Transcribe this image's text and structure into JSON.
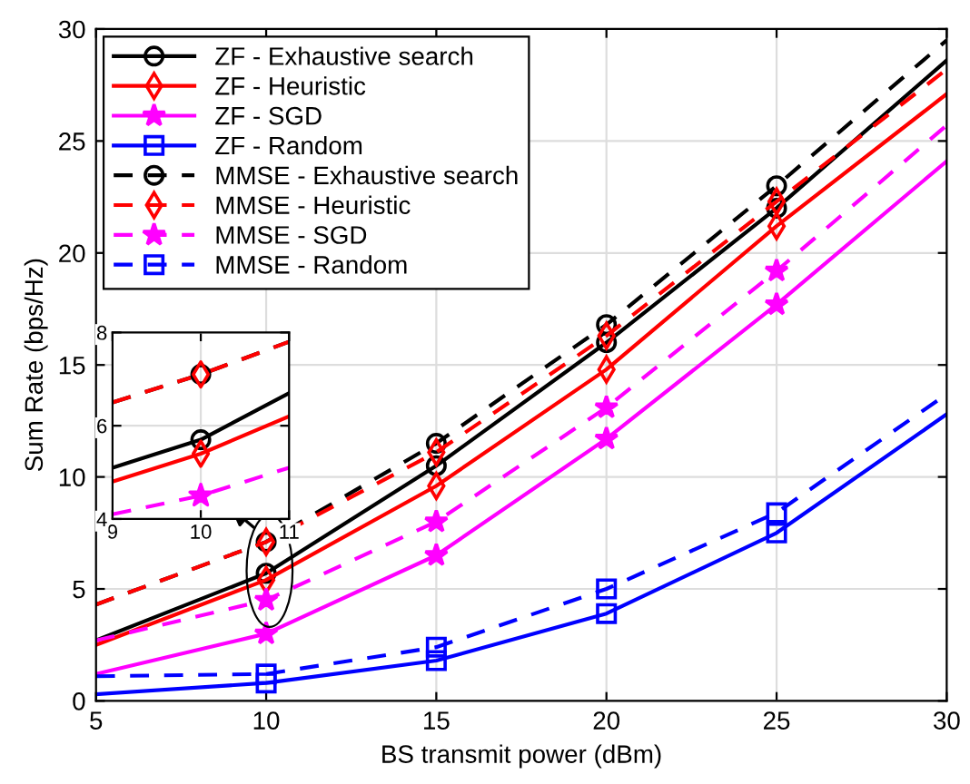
{
  "chart_data": [
    {
      "type": "line",
      "xlabel": "BS transmit power (dBm)",
      "ylabel": "Sum Rate (bps/Hz)",
      "x": [
        5,
        10,
        15,
        20,
        25,
        30
      ],
      "xlim": [
        5,
        30
      ],
      "ylim": [
        0,
        30
      ],
      "xticks": [
        5,
        10,
        15,
        20,
        25,
        30
      ],
      "yticks": [
        0,
        5,
        10,
        15,
        20,
        25,
        30
      ],
      "grid": true,
      "legend": "top left",
      "series": [
        {
          "name": "ZF - Exhaustive search",
          "color": "#000000",
          "marker": "circle",
          "line_style": "solid",
          "values": [
            2.7,
            5.7,
            10.5,
            16.0,
            22.0,
            28.6
          ]
        },
        {
          "name": "ZF - Heuristic",
          "color": "#ff0000",
          "marker": "diamond",
          "line_style": "solid",
          "values": [
            2.5,
            5.4,
            9.6,
            14.8,
            21.2,
            27.1
          ]
        },
        {
          "name": "ZF - SGD",
          "color": "#ff00ff",
          "marker": "star",
          "line_style": "solid",
          "values": [
            1.2,
            3.0,
            6.5,
            11.7,
            17.7,
            24.1
          ]
        },
        {
          "name": "ZF - Random",
          "color": "#0000ff",
          "marker": "square",
          "line_style": "solid",
          "values": [
            0.3,
            0.8,
            1.8,
            3.9,
            7.5,
            12.8
          ]
        },
        {
          "name": "MMSE - Exhaustive search",
          "color": "#000000",
          "marker": "circle",
          "line_style": "dashed",
          "values": [
            4.3,
            7.1,
            11.5,
            16.8,
            23.0,
            29.5
          ]
        },
        {
          "name": "MMSE - Heuristic",
          "color": "#ff0000",
          "marker": "diamond",
          "line_style": "dashed",
          "values": [
            4.3,
            7.1,
            11.1,
            16.3,
            22.3,
            28.2
          ]
        },
        {
          "name": "MMSE - SGD",
          "color": "#ff00ff",
          "marker": "star",
          "line_style": "dashed",
          "values": [
            2.7,
            4.5,
            8.0,
            13.1,
            19.2,
            25.7
          ]
        },
        {
          "name": "MMSE - Random",
          "color": "#0000ff",
          "marker": "square",
          "line_style": "dashed",
          "values": [
            1.1,
            1.2,
            2.4,
            5.0,
            8.4,
            13.7
          ]
        }
      ]
    },
    {
      "type": "line",
      "x": [
        9,
        10,
        11
      ],
      "xlim": [
        9,
        11
      ],
      "ylim": [
        4,
        8
      ],
      "xticks": [
        9,
        10,
        11
      ],
      "yticks": [
        4,
        6,
        8
      ],
      "grid": true,
      "series": [
        {
          "color": "#000000",
          "line_style": "solid",
          "values": [
            5.1,
            5.7,
            6.7
          ]
        },
        {
          "color": "#ff0000",
          "line_style": "solid",
          "values": [
            4.8,
            5.4,
            6.2
          ]
        },
        {
          "color": "#000000",
          "line_style": "dashed",
          "values": [
            6.5,
            7.1,
            7.8
          ]
        },
        {
          "color": "#ff0000",
          "line_style": "dashed",
          "values": [
            6.5,
            7.1,
            7.8
          ]
        },
        {
          "color": "#ff00ff",
          "line_style": "dashed",
          "values": [
            4.1,
            4.5,
            5.1
          ]
        },
        {
          "type": "scatter",
          "color": "#000000",
          "marker": "circle",
          "values": [
            null,
            5.7,
            null
          ]
        },
        {
          "type": "scatter",
          "color": "#ff0000",
          "marker": "diamond",
          "values": [
            null,
            5.4,
            null
          ]
        },
        {
          "type": "scatter",
          "color": "#000000",
          "marker": "circle",
          "values": [
            null,
            7.1,
            null
          ]
        },
        {
          "type": "scatter",
          "color": "#ff0000",
          "marker": "diamond",
          "values": [
            null,
            7.1,
            null
          ]
        },
        {
          "type": "scatter",
          "color": "#ff00ff",
          "marker": "star",
          "values": [
            null,
            4.5,
            null
          ]
        }
      ]
    }
  ]
}
